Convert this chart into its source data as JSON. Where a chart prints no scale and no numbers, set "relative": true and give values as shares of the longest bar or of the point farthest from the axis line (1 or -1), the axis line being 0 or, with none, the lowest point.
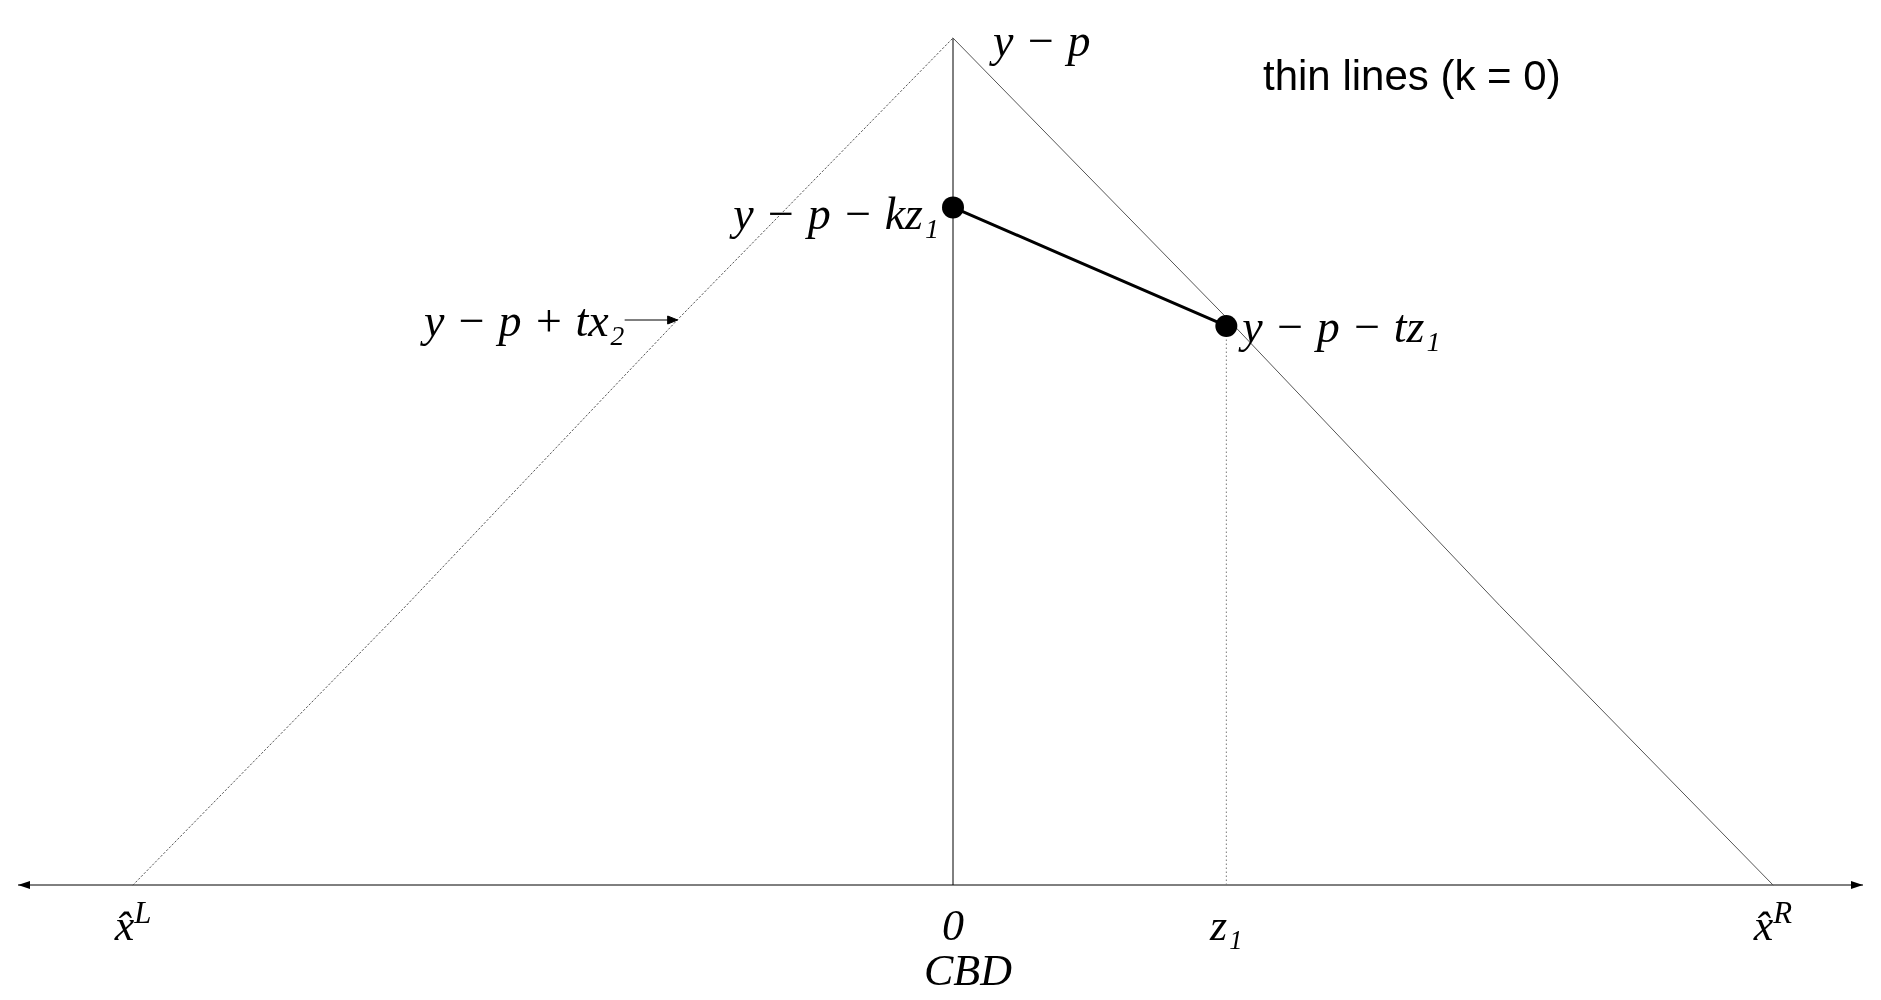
{
  "chart_data": {
    "type": "line",
    "relative": true,
    "xlabel": "CBD",
    "categories": [
      "x̂$^{L}$",
      null,
      null,
      "0",
      "z₁",
      null,
      "x̂$^{R}$"
    ],
    "series": [
      {
        "color": "#555555",
        "values": [
          0,
          0.33,
          0.67,
          1,
          null,
          null,
          null
        ],
        "line_style": "dotted"
      },
      {
        "color": "#555555",
        "values": [
          null,
          null,
          null,
          1,
          0.67,
          0.33,
          0
        ],
        "line_style": "solid"
      },
      {
        "color": "#000000",
        "values": [
          null,
          null,
          null,
          0.8,
          0.66,
          null,
          null
        ],
        "line_style": "solid",
        "marker": "circle"
      }
    ],
    "ref_lines": [
      {
        "axis": "x",
        "value": "0",
        "color": "#000000",
        "line_style": "solid"
      },
      {
        "axis": "x",
        "value": "z₁",
        "color": "#777777",
        "line_style": "dotted"
      }
    ],
    "annotations": [
      {
        "text": "y − p",
        "x": "0",
        "y": 1
      },
      {
        "text": "y − p − kz₁",
        "x": "0",
        "y": 0.8
      },
      {
        "text": "y − p − tz₁",
        "x": "z₁",
        "y": 0.66
      },
      "y − p + tx₂",
      "thin lines (k = 0)"
    ]
  }
}
